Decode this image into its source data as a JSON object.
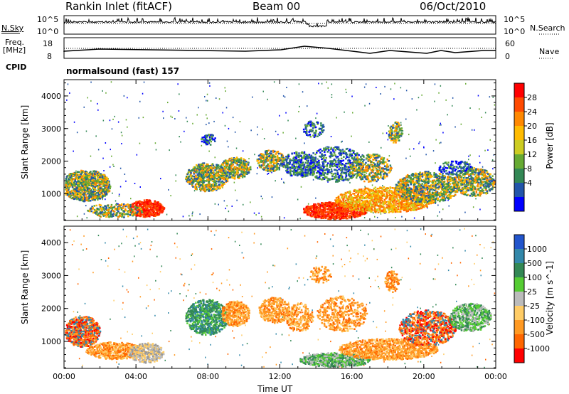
{
  "header": {
    "station": "Rankin Inlet (fitACF)",
    "beam": "Beam 00",
    "date": "06/Oct/2010"
  },
  "panels": {
    "nsky_label": "N.Sky",
    "nsky_ticks": [
      "10^5",
      "10^0"
    ],
    "nsearch_label": "N.Search",
    "nsearch_ticks": [
      "10^5",
      "10^0"
    ],
    "freq_label_1": "Freq.",
    "freq_label_2": "[MHz]",
    "freq_ticks": [
      "18",
      "8"
    ],
    "nave_label": "Nave",
    "nave_ticks": [
      "60",
      "0"
    ],
    "cpid_label": "CPID",
    "cpid_value": "normalsound (fast) 157"
  },
  "chart_data": [
    {
      "type": "heatmap",
      "title": "Power",
      "ylabel": "Slant Range [km]",
      "y_ticks": [
        "4000",
        "3000",
        "2000",
        "1000"
      ],
      "ylim": [
        180,
        4500
      ],
      "colorbar": {
        "label": "Power [dB]",
        "ticks": [
          "28",
          "24",
          "20",
          "16",
          "12",
          "8",
          "4"
        ],
        "colors": [
          "#ff0000",
          "#ff4a00",
          "#ff8800",
          "#ffbb00",
          "#cccc22",
          "#66aa33",
          "#338855",
          "#2255aa",
          "#0000ff"
        ]
      }
    },
    {
      "type": "heatmap",
      "title": "Velocity",
      "ylabel": "Slant Range [km]",
      "xlabel": "Time UT",
      "x_ticks": [
        "00:00",
        "04:00",
        "08:00",
        "12:00",
        "16:00",
        "20:00",
        "00:00"
      ],
      "y_ticks": [
        "4000",
        "3000",
        "2000",
        "1000"
      ],
      "ylim": [
        180,
        4500
      ],
      "colorbar": {
        "label": "Velocity [m s^-1]",
        "ticks": [
          "1000",
          "500",
          "100",
          "25",
          "-25",
          "-100",
          "-500",
          "-1000"
        ],
        "colors": [
          "#2255cc",
          "#3388aa",
          "#338855",
          "#55cc33",
          "#bbbbbb",
          "#ffcc66",
          "#ff9922",
          "#ff6600",
          "#ff0000"
        ]
      }
    }
  ]
}
